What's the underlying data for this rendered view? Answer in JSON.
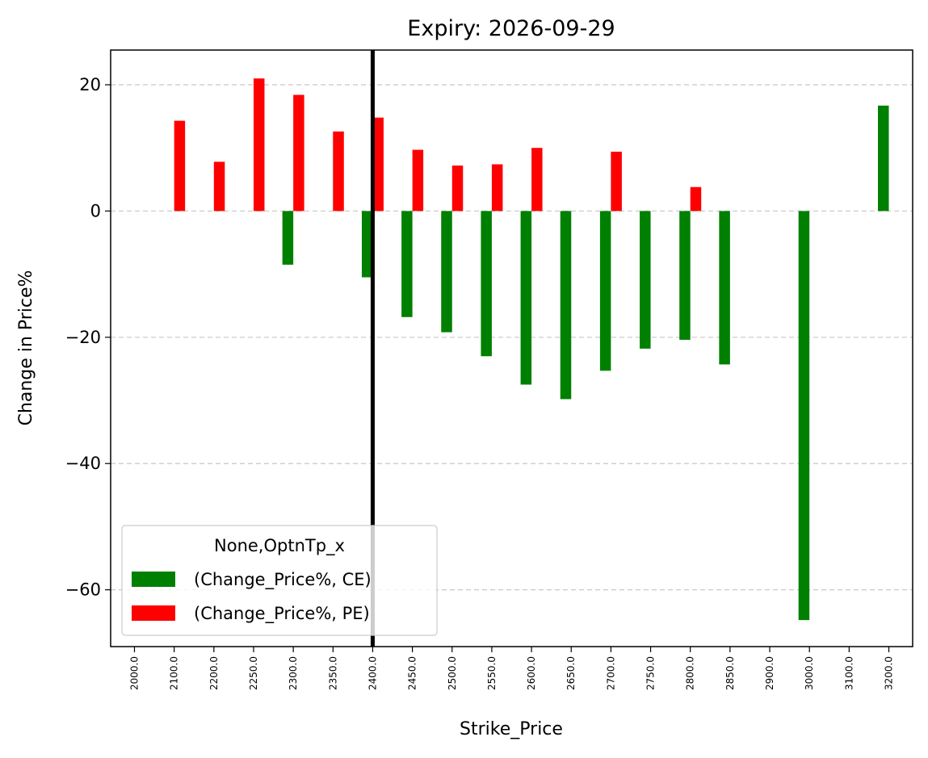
{
  "chart_data": {
    "type": "bar",
    "title": "Expiry: 2026-09-29",
    "xlabel": "Strike_Price",
    "ylabel": "Change in Price%",
    "categories": [
      "2000.0",
      "2100.0",
      "2200.0",
      "2250.0",
      "2300.0",
      "2350.0",
      "2400.0",
      "2450.0",
      "2500.0",
      "2550.0",
      "2600.0",
      "2650.0",
      "2700.0",
      "2750.0",
      "2800.0",
      "2850.0",
      "2900.0",
      "3000.0",
      "3100.0",
      "3200.0"
    ],
    "series": [
      {
        "name": "(Change_Price%, CE)",
        "color": "#008000",
        "values": [
          null,
          null,
          null,
          null,
          -8.5,
          null,
          -10.5,
          -16.8,
          -19.2,
          -23.0,
          -27.5,
          -29.8,
          -25.3,
          -21.8,
          -20.4,
          -24.3,
          null,
          -64.8,
          null,
          16.7
        ]
      },
      {
        "name": "(Change_Price%, PE)",
        "color": "#ff0000",
        "values": [
          null,
          14.3,
          7.8,
          21.0,
          18.4,
          12.6,
          14.8,
          9.7,
          7.2,
          7.4,
          10.0,
          null,
          9.4,
          null,
          3.8,
          null,
          null,
          null,
          null,
          null
        ]
      }
    ],
    "ylim": [
      -69,
      25.5
    ],
    "yticks": [
      20,
      0,
      -20,
      -40,
      -60
    ],
    "ytick_labels": [
      "20",
      "0",
      "−20",
      "−40",
      "−60"
    ],
    "grid": "horizontal dashed",
    "vline_category": "2400.0",
    "legend": {
      "title": "None,OptnTp_x",
      "placement": "lower-left"
    }
  }
}
